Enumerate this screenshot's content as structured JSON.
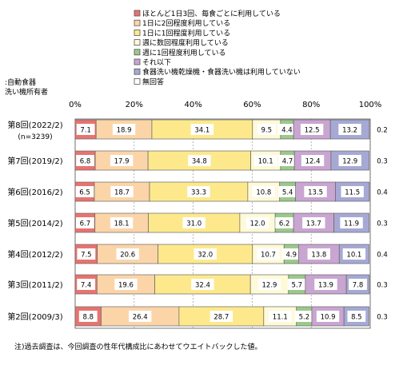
{
  "chart_data": {
    "type": "bar",
    "orientation": "horizontal",
    "stacked": true,
    "percent": true,
    "legend_placement": "top-right",
    "respondent_label": [
      ":自動食器",
      "洗い機所有者"
    ],
    "note": "注)過去調査は、今回調査の性年代構成比にあわせてウエイトバックした値。",
    "x_ticks": [
      "0%",
      "20%",
      "40%",
      "60%",
      "80%",
      "100%"
    ],
    "xlim": [
      0,
      100
    ],
    "categories": [
      [
        "第8回(2022/2)",
        "(n=3239)"
      ],
      [
        "第7回(2019/2)"
      ],
      [
        "第6回(2016/2)"
      ],
      [
        "第5回(2014/2)"
      ],
      [
        "第4回(2012/2)"
      ],
      [
        "第3回(2011/2)"
      ],
      [
        "第2回(2009/3)"
      ]
    ],
    "series": [
      {
        "name": "ほとんど1日3回、毎食ごとに利用している",
        "color": "#e8736f",
        "values": [
          7.1,
          6.8,
          6.5,
          6.7,
          7.5,
          7.4,
          8.8
        ]
      },
      {
        "name": "1日に2回程度利用している",
        "color": "#fbd5a8",
        "values": [
          18.9,
          17.9,
          18.7,
          18.1,
          20.6,
          19.6,
          26.4
        ]
      },
      {
        "name": "1日に1回程度利用している",
        "color": "#fde98c",
        "values": [
          34.1,
          34.8,
          33.3,
          31.0,
          32.0,
          32.4,
          28.7
        ]
      },
      {
        "name": "週に数回程度利用している",
        "color": "#fefad8",
        "values": [
          9.5,
          10.1,
          10.8,
          12.0,
          10.7,
          12.9,
          11.1
        ]
      },
      {
        "name": "週に1回程度利用している",
        "color": "#9cc98a",
        "values": [
          4.4,
          4.7,
          5.4,
          6.2,
          4.9,
          5.7,
          5.2
        ]
      },
      {
        "name": "それ以下",
        "color": "#c9a5d1",
        "values": [
          12.5,
          12.4,
          13.5,
          13.7,
          13.8,
          13.9,
          10.9
        ]
      },
      {
        "name": "食器洗い機乾燥機・食器洗い機は利用していない",
        "color": "#a6a9d4",
        "values": [
          13.2,
          12.9,
          11.5,
          11.9,
          10.1,
          7.8,
          8.5
        ]
      },
      {
        "name": "無回答",
        "color": "#ffffff",
        "values": [
          0.2,
          0.3,
          0.4,
          0.3,
          0.4,
          0.3,
          0.3
        ]
      }
    ]
  }
}
